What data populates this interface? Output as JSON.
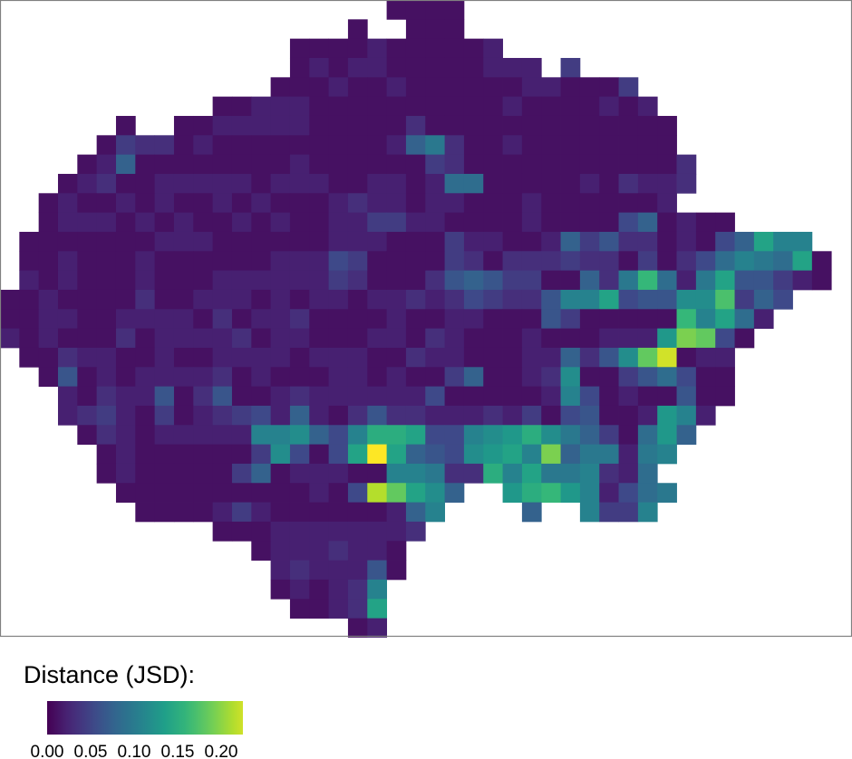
{
  "chart_data": {
    "type": "heatmap",
    "grid": "spatial raster, rows north to south, columns west to east",
    "legend": {
      "title": "Distance (JSD):",
      "ticks": [
        "0.00",
        "0.05",
        "0.10",
        "0.15",
        "0.20"
      ],
      "tick_values": [
        0,
        0.05,
        0.1,
        0.15,
        0.2
      ],
      "range": [
        0,
        0.225
      ],
      "colormap": "viridis",
      "placement": "bottom-left"
    },
    "colors": {
      "low": "#440154",
      "mid": "#21918c",
      "high": "#fde725",
      "frame": "#808080"
    },
    "rows": [
      {
        "start": 20,
        "values": [
          0.01,
          0.01,
          0.01,
          0.01
        ]
      },
      {
        "start": 18,
        "values": [
          0.01,
          null,
          null,
          0.01,
          0.01,
          0.01
        ]
      },
      {
        "start": 15,
        "values": [
          0.01,
          0.01,
          0.01,
          0.01,
          0.02,
          0.01,
          0.01,
          0.01,
          0.01,
          0.01,
          0.02
        ]
      },
      {
        "start": 15,
        "values": [
          0.01,
          0.02,
          0.01,
          0.02,
          0.02,
          0.01,
          0.01,
          0.01,
          0.01,
          0.01,
          0.02,
          0.02,
          0.02,
          null,
          0.04
        ]
      },
      {
        "start": 14,
        "values": [
          0.01,
          0.01,
          0.01,
          0.02,
          0.01,
          0.01,
          0.02,
          0.01,
          0.01,
          0.01,
          0.01,
          0.01,
          0.01,
          0.02,
          0.02,
          0.01,
          0.01,
          0.01,
          0.04
        ]
      },
      {
        "start": 11,
        "values": [
          0.01,
          0.01,
          0.02,
          0.02,
          0.02,
          0.01,
          0.01,
          0.01,
          0.01,
          0.01,
          0.01,
          0.01,
          0.01,
          0.01,
          0.01,
          0.02,
          0.01,
          0.01,
          0.01,
          0.01,
          0.02,
          0.01,
          0.02
        ]
      },
      {
        "start": 6,
        "values": [
          0.01,
          null,
          null,
          0.01,
          0.01,
          0.02,
          0.02,
          0.02,
          0.02,
          0.02,
          0.01,
          0.01,
          0.01,
          0.01,
          0.01,
          0.03,
          0.01,
          0.01,
          0.01,
          0.01,
          0.01,
          0.01,
          0.01,
          0.01,
          0.01,
          0.01,
          0.01,
          0.01,
          0.01
        ]
      },
      {
        "start": 5,
        "values": [
          0.01,
          0.04,
          0.03,
          0.03,
          0.01,
          0.02,
          0.01,
          0.01,
          0.01,
          0.01,
          0.01,
          0.01,
          0.01,
          0.01,
          0.01,
          0.02,
          0.07,
          0.09,
          0.03,
          0.01,
          0.01,
          0.02,
          0.01,
          0.01,
          0.01,
          0.01,
          0.01,
          0.01,
          0.01,
          0.01
        ]
      },
      {
        "start": 4,
        "values": [
          0.01,
          0.02,
          0.07,
          0.01,
          0.01,
          0.01,
          0.01,
          0.01,
          0.01,
          0.01,
          0.01,
          0.02,
          0.01,
          0.01,
          0.01,
          0.01,
          0.01,
          0.01,
          0.04,
          0.03,
          0.01,
          0.01,
          0.01,
          0.01,
          0.01,
          0.01,
          0.01,
          0.01,
          0.01,
          0.01,
          0.01,
          0.03
        ]
      },
      {
        "start": 3,
        "values": [
          0.01,
          0.02,
          0.03,
          0.01,
          0.01,
          0.02,
          0.02,
          0.02,
          0.02,
          0.02,
          0.01,
          0.02,
          0.02,
          0.02,
          0.01,
          0.01,
          0.02,
          0.02,
          0.01,
          0.02,
          0.08,
          0.08,
          0.01,
          0.01,
          0.01,
          0.01,
          0.01,
          0.02,
          0.01,
          0.03,
          0.02,
          0.02,
          0.03
        ]
      },
      {
        "start": 2,
        "values": [
          0.01,
          0.02,
          0.01,
          0.01,
          0.02,
          0.01,
          0.02,
          0.01,
          0.01,
          0.02,
          0.01,
          0.02,
          0.01,
          0.01,
          0.01,
          0.02,
          0.03,
          0.02,
          0.02,
          0.01,
          0.02,
          0.02,
          0.01,
          0.01,
          0.01,
          0.02,
          0.01,
          0.01,
          0.01,
          0.01,
          0.01,
          0.01,
          0.02
        ]
      },
      {
        "start": 2,
        "values": [
          0.01,
          0.02,
          0.02,
          0.02,
          0.01,
          0.02,
          0.01,
          0.02,
          0.01,
          0.01,
          0.02,
          0.01,
          0.02,
          0.01,
          0.01,
          0.02,
          0.02,
          0.04,
          0.04,
          0.02,
          0.02,
          0.01,
          0.01,
          0.01,
          0.01,
          0.02,
          0.01,
          0.01,
          0.01,
          0.01,
          0.05,
          0.07,
          0.01,
          0.02,
          0.01,
          0.01
        ]
      },
      {
        "start": 1,
        "values": [
          0.01,
          0.01,
          0.01,
          0.01,
          0.01,
          0.01,
          0.01,
          0.02,
          0.02,
          0.02,
          0.01,
          0.01,
          0.01,
          0.01,
          0.01,
          0.01,
          0.02,
          0.02,
          0.02,
          0.01,
          0.01,
          0.01,
          0.04,
          0.02,
          0.02,
          0.01,
          0.01,
          0.02,
          0.07,
          0.04,
          0.06,
          0.03,
          0.03,
          0.01,
          0.02,
          0.01,
          0.05,
          0.07,
          0.13,
          0.1,
          0.1
        ]
      },
      {
        "start": 1,
        "values": [
          0.01,
          0.01,
          0.02,
          0.01,
          0.01,
          0.01,
          0.02,
          0.01,
          0.01,
          0.01,
          0.01,
          0.01,
          0.01,
          0.02,
          0.02,
          0.02,
          0.05,
          0.04,
          0.01,
          0.01,
          0.01,
          0.01,
          0.04,
          0.03,
          0.01,
          0.03,
          0.03,
          0.03,
          0.04,
          0.03,
          0.03,
          0.01,
          0.04,
          0.01,
          0.03,
          0.05,
          0.08,
          0.1,
          0.09,
          0.08,
          0.13,
          0.01
        ]
      },
      {
        "start": 1,
        "values": [
          0.02,
          0.01,
          0.02,
          0.01,
          0.01,
          0.01,
          0.02,
          0.01,
          0.01,
          0.01,
          0.02,
          0.02,
          0.02,
          0.02,
          0.02,
          0.02,
          0.04,
          0.03,
          0.01,
          0.01,
          0.01,
          0.03,
          0.06,
          0.07,
          0.06,
          0.04,
          0.04,
          0.01,
          0.01,
          0.07,
          0.03,
          0.09,
          0.15,
          0.08,
          0.02,
          0.09,
          0.13,
          0.06,
          0.06,
          0.04,
          0.02,
          0.01
        ]
      },
      {
        "start": 0,
        "values": [
          0.01,
          0.01,
          0.02,
          0.01,
          0.01,
          0.01,
          0.01,
          0.03,
          0.01,
          0.01,
          0.02,
          0.02,
          0.02,
          0.01,
          0.02,
          0.01,
          0.02,
          0.02,
          0.01,
          0.02,
          0.02,
          0.03,
          0.02,
          0.03,
          0.05,
          0.04,
          0.03,
          0.03,
          0.06,
          0.1,
          0.1,
          0.13,
          0.05,
          0.06,
          0.06,
          0.11,
          0.11,
          0.16,
          0.04,
          0.07,
          0.05
        ]
      },
      {
        "start": 0,
        "values": [
          0.01,
          0.01,
          0.02,
          0.02,
          0.01,
          0.01,
          0.02,
          0.02,
          0.02,
          0.02,
          0.01,
          0.03,
          0.01,
          0.02,
          0.02,
          0.03,
          0.01,
          0.01,
          0.01,
          0.01,
          0.02,
          0.01,
          0.01,
          0.02,
          0.02,
          0.01,
          0.01,
          0.01,
          0.06,
          0.04,
          0.01,
          0.01,
          0.01,
          0.01,
          0.01,
          0.15,
          0.1,
          0.13,
          0.08,
          0.02
        ]
      },
      {
        "start": 0,
        "values": [
          0.02,
          0.01,
          0.02,
          0.01,
          0.01,
          0.01,
          0.03,
          0.01,
          0.02,
          0.02,
          0.02,
          0.02,
          0.03,
          0.01,
          0.02,
          0.02,
          0.01,
          0.01,
          0.01,
          0.02,
          0.02,
          0.01,
          0.03,
          0.02,
          0.01,
          0.01,
          0.01,
          0.02,
          0.01,
          0.01,
          0.01,
          0.02,
          0.02,
          0.02,
          0.12,
          0.18,
          0.17,
          0.05,
          0.01
        ]
      },
      {
        "start": 1,
        "values": [
          0.01,
          0.01,
          0.03,
          0.02,
          0.02,
          0.01,
          0.01,
          0.02,
          0.01,
          0.01,
          0.02,
          0.02,
          0.02,
          0.02,
          0.01,
          0.02,
          0.02,
          0.02,
          0.01,
          0.01,
          0.03,
          0.02,
          0.02,
          0.01,
          0.01,
          0.01,
          0.02,
          0.02,
          0.07,
          0.03,
          0.06,
          0.11,
          0.17,
          0.21,
          0.01,
          0.02,
          0.02
        ]
      },
      {
        "start": 2,
        "values": [
          0.01,
          0.06,
          0.01,
          0.02,
          0.01,
          0.02,
          0.02,
          0.02,
          0.02,
          0.03,
          0.01,
          0.02,
          0.01,
          0.01,
          0.01,
          0.02,
          0.02,
          0.01,
          0.02,
          0.01,
          0.01,
          0.04,
          0.07,
          0.01,
          0.01,
          0.02,
          0.03,
          0.11,
          0.01,
          0.01,
          0.04,
          0.06,
          0.08,
          0.05,
          0.01,
          0.01
        ]
      },
      {
        "start": 3,
        "values": [
          0.02,
          0.01,
          0.03,
          0.02,
          0.02,
          0.06,
          0.01,
          0.03,
          0.06,
          0.01,
          0.01,
          0.02,
          0.03,
          0.02,
          0.02,
          0.02,
          0.02,
          0.02,
          0.02,
          0.05,
          0.01,
          0.01,
          0.01,
          0.01,
          0.01,
          0.02,
          0.1,
          0.05,
          0.01,
          0.02,
          0.01,
          0.01,
          0.06,
          0.01,
          0.01
        ]
      },
      {
        "start": 3,
        "values": [
          0.02,
          0.03,
          0.04,
          0.02,
          0.01,
          0.04,
          0.01,
          0.02,
          0.03,
          0.04,
          0.05,
          0.02,
          0.07,
          0.02,
          0.01,
          0.03,
          0.06,
          0.03,
          0.03,
          0.02,
          0.02,
          0.02,
          0.03,
          0.02,
          0.04,
          0.01,
          0.05,
          0.06,
          0.01,
          0.01,
          0.02,
          0.12,
          0.1,
          0.02
        ]
      },
      {
        "start": 4,
        "values": [
          0.01,
          0.03,
          0.02,
          0.01,
          0.02,
          0.02,
          0.02,
          0.02,
          0.02,
          0.1,
          0.1,
          0.11,
          0.07,
          0.05,
          0.1,
          0.14,
          0.14,
          0.13,
          0.05,
          0.05,
          0.1,
          0.11,
          0.12,
          0.14,
          0.11,
          0.09,
          0.07,
          0.04,
          0.01,
          0.08,
          0.12,
          0.07
        ]
      },
      {
        "start": 5,
        "values": [
          0.01,
          0.02,
          0.01,
          0.01,
          0.01,
          0.01,
          0.01,
          0.01,
          0.04,
          0.11,
          0.05,
          0.01,
          0.05,
          0.13,
          0.225,
          0.13,
          0.07,
          0.06,
          0.05,
          0.11,
          0.12,
          0.13,
          0.1,
          0.18,
          0.07,
          0.09,
          0.09,
          0.02,
          0.09,
          0.1
        ]
      },
      {
        "start": 5,
        "values": [
          0.01,
          0.02,
          0.01,
          0.01,
          0.01,
          0.01,
          0.01,
          0.04,
          0.07,
          0.01,
          0.02,
          0.02,
          0.02,
          0.01,
          0.01,
          0.1,
          0.1,
          0.09,
          0.03,
          0.03,
          0.14,
          0.1,
          0.13,
          0.09,
          0.09,
          0.1,
          0.03,
          0.02,
          0.08
        ]
      },
      {
        "start": 6,
        "values": [
          0.01,
          0.01,
          0.01,
          0.01,
          0.01,
          0.01,
          0.01,
          0.01,
          0.01,
          0.01,
          0.02,
          0.01,
          0.05,
          0.2,
          0.17,
          0.13,
          0.11,
          0.07,
          null,
          null,
          0.12,
          0.14,
          0.15,
          0.12,
          0.1,
          0.02,
          0.05,
          0.08,
          0.09
        ]
      },
      {
        "start": 7,
        "values": [
          0.01,
          0.01,
          0.01,
          0.01,
          0.02,
          0.04,
          0.02,
          0.01,
          0.01,
          0.01,
          0.01,
          0.01,
          0.01,
          0.02,
          0.07,
          0.1,
          null,
          null,
          null,
          null,
          0.07,
          null,
          null,
          0.1,
          0.04,
          0.04,
          0.1
        ]
      },
      {
        "start": 11,
        "values": [
          0.01,
          0.01,
          0.01,
          0.02,
          0.02,
          0.02,
          0.02,
          0.02,
          0.02,
          0.02,
          0.03
        ]
      },
      {
        "start": 13,
        "values": [
          0.01,
          0.02,
          0.02,
          0.02,
          0.03,
          0.02,
          0.02,
          0.01
        ]
      },
      {
        "start": 14,
        "values": [
          0.02,
          0.03,
          0.02,
          0.02,
          0.02,
          0.06,
          0.01
        ]
      },
      {
        "start": 14,
        "values": [
          0.01,
          0.02,
          0.01,
          0.02,
          0.03,
          0.1
        ]
      },
      {
        "start": 15,
        "values": [
          0.01,
          0.01,
          0.02,
          0.03,
          0.13
        ]
      },
      {
        "start": 18,
        "values": [
          0.01,
          0.02
        ]
      }
    ]
  }
}
